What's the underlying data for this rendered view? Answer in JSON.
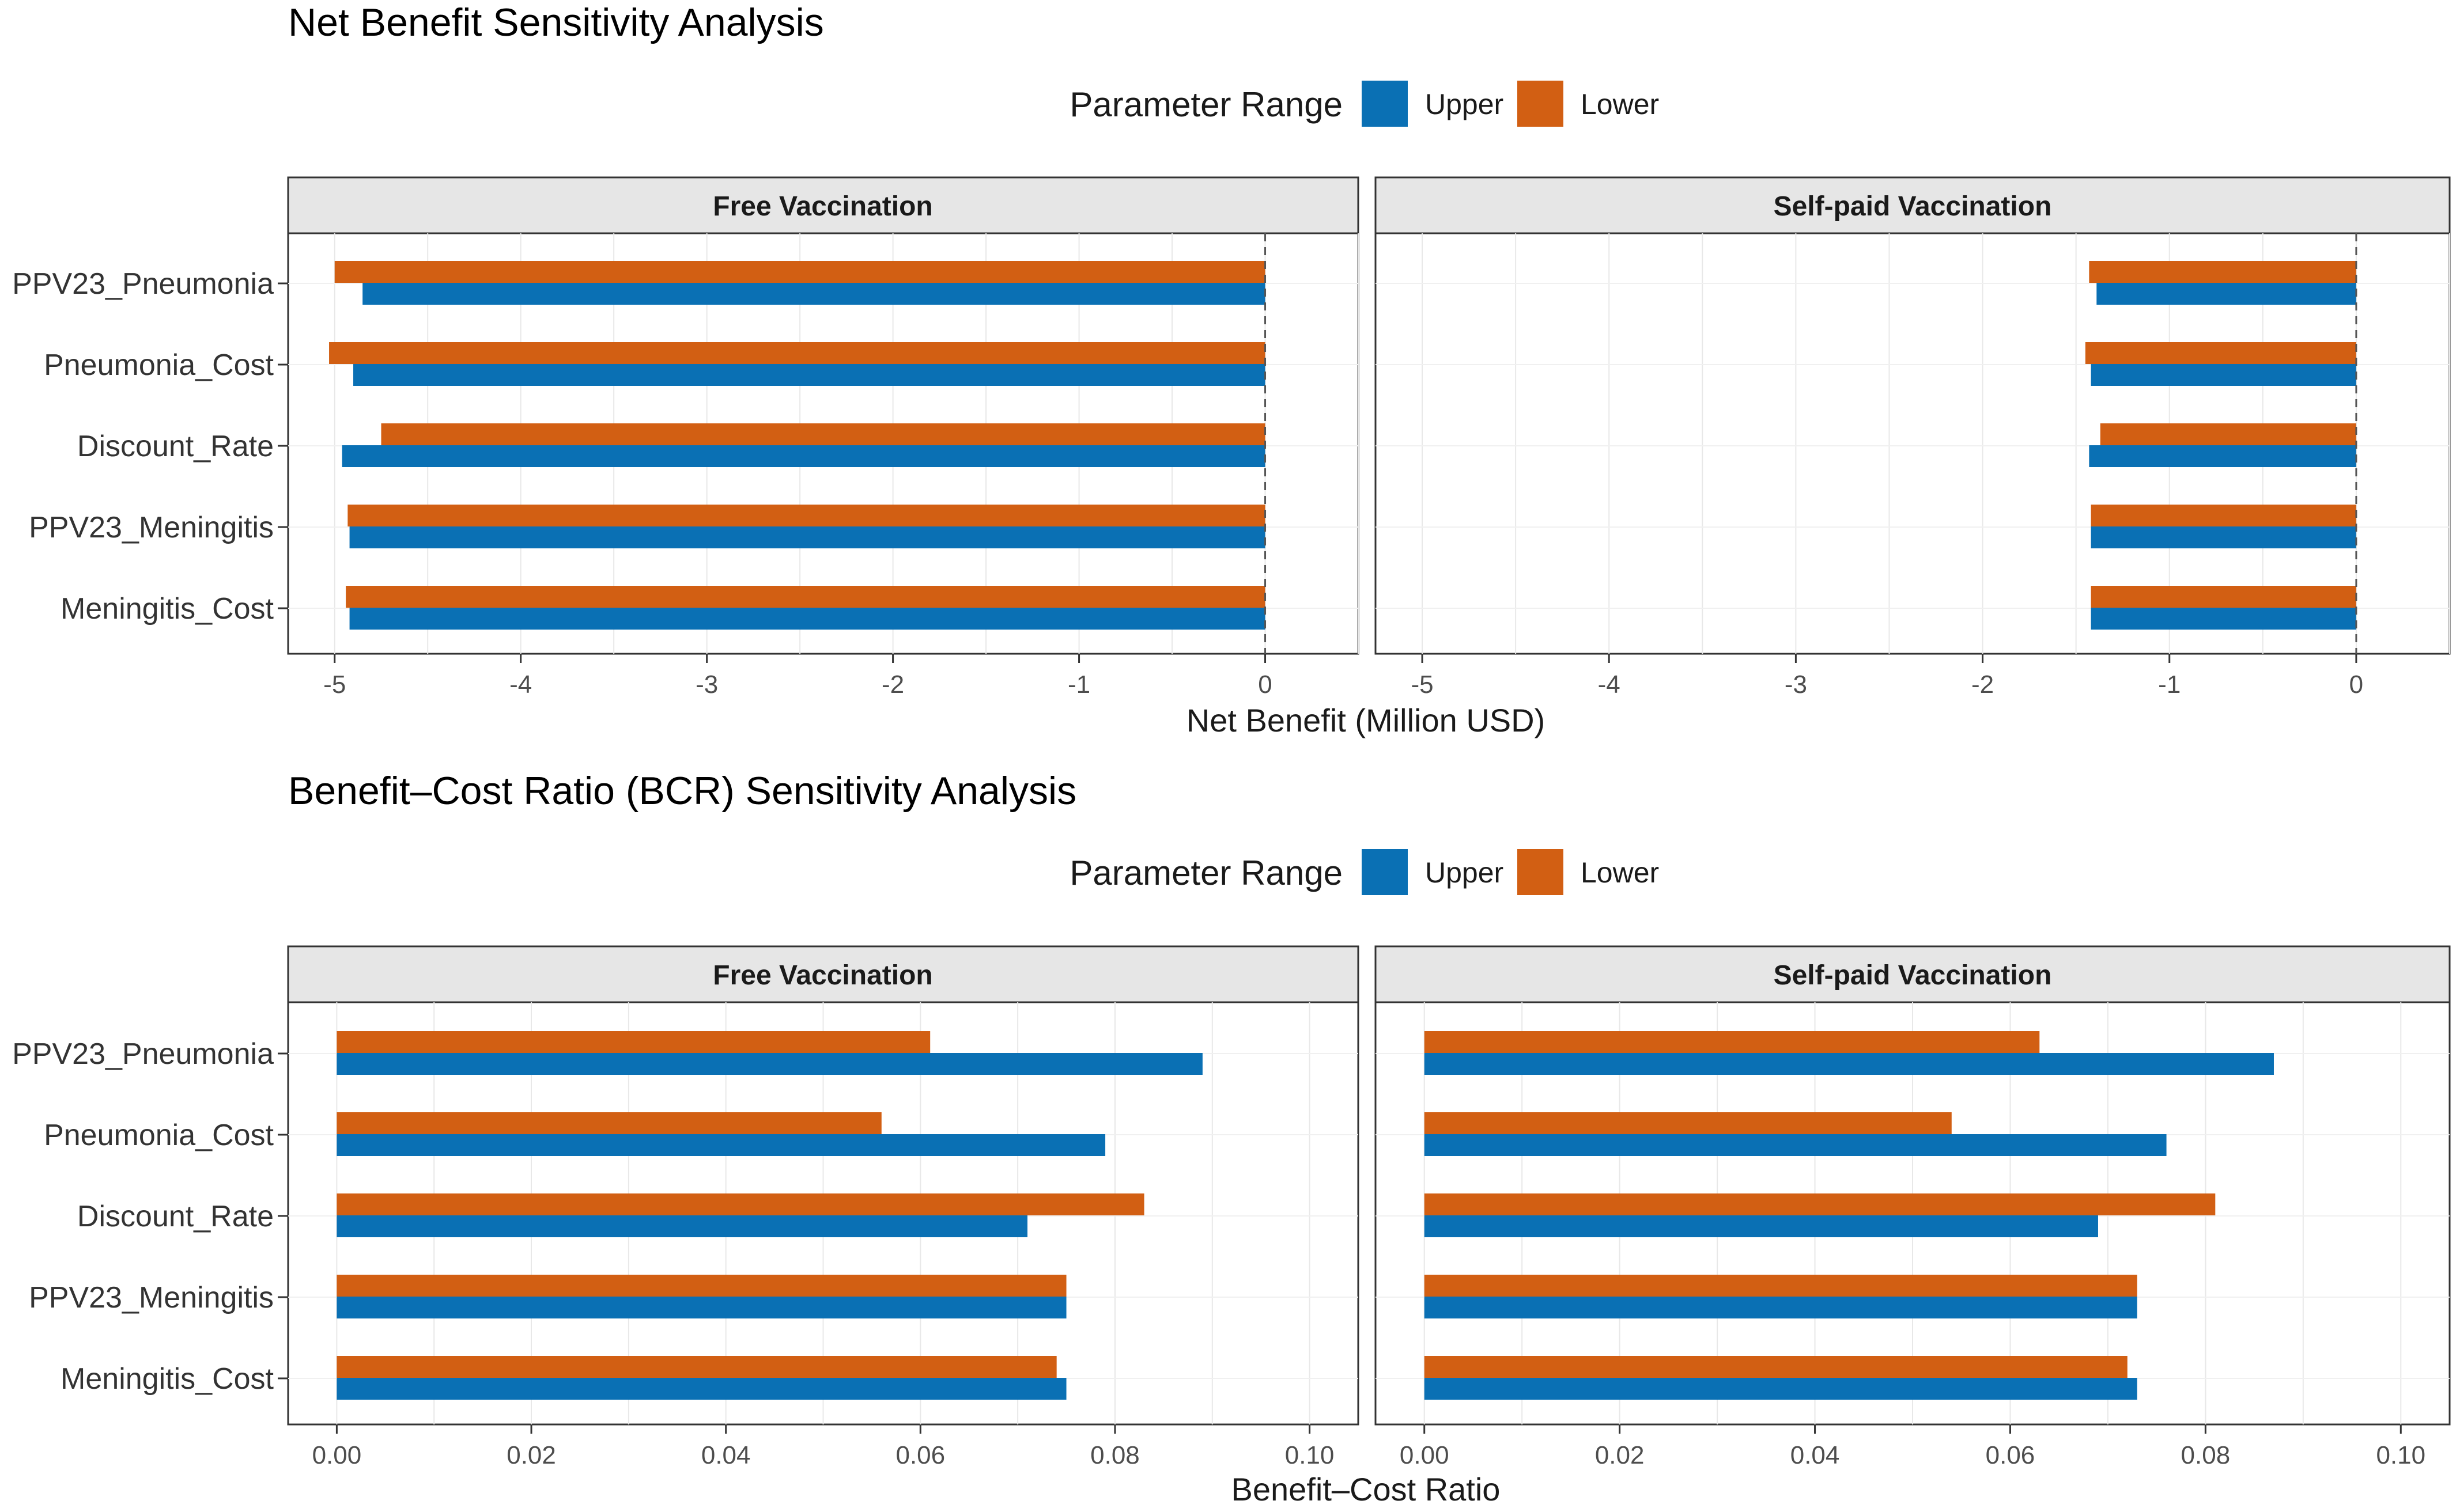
{
  "legend": {
    "title": "Parameter Range",
    "items": [
      {
        "key": "upper",
        "label": "Upper",
        "color": "#0A70B4"
      },
      {
        "key": "lower",
        "label": "Lower",
        "color": "#D25F13"
      }
    ]
  },
  "chart_data": [
    {
      "type": "bar",
      "orientation": "horizontal",
      "title": "Net Benefit Sensitivity Analysis",
      "xlabel": "Net Benefit (Million USD)",
      "xlim": [
        -5.25,
        0.5
      ],
      "xticks": [
        -5,
        -4,
        -3,
        -2,
        -1,
        0
      ],
      "xtick_labels": [
        "-5",
        "-4",
        "-3",
        "-2",
        "-1",
        "0"
      ],
      "reference_line": 0,
      "categories": [
        "PPV23_Pneumonia",
        "Pneumonia_Cost",
        "Discount_Rate",
        "PPV23_Meningitis",
        "Meningitis_Cost"
      ],
      "panels": [
        {
          "title": "Free Vaccination",
          "series": [
            {
              "name": "Lower",
              "values": [
                -5.0,
                -5.03,
                -4.75,
                -4.93,
                -4.94
              ]
            },
            {
              "name": "Upper",
              "values": [
                -4.85,
                -4.9,
                -4.96,
                -4.92,
                -4.92
              ]
            }
          ]
        },
        {
          "title": "Self-paid Vaccination",
          "series": [
            {
              "name": "Lower",
              "values": [
                -1.43,
                -1.45,
                -1.37,
                -1.42,
                -1.42
              ]
            },
            {
              "name": "Upper",
              "values": [
                -1.39,
                -1.42,
                -1.43,
                -1.42,
                -1.42
              ]
            }
          ]
        }
      ],
      "grid": true
    },
    {
      "type": "bar",
      "orientation": "horizontal",
      "title": "Benefit–Cost Ratio (BCR) Sensitivity Analysis",
      "xlabel": "Benefit–Cost Ratio",
      "xlim": [
        -0.005,
        0.105
      ],
      "xticks": [
        0,
        0.02,
        0.04,
        0.06,
        0.08,
        0.1
      ],
      "xtick_labels": [
        "0.00",
        "0.02",
        "0.04",
        "0.06",
        "0.08",
        "0.10"
      ],
      "categories": [
        "PPV23_Pneumonia",
        "Pneumonia_Cost",
        "Discount_Rate",
        "PPV23_Meningitis",
        "Meningitis_Cost"
      ],
      "panels": [
        {
          "title": "Free Vaccination",
          "series": [
            {
              "name": "Lower",
              "values": [
                0.061,
                0.056,
                0.083,
                0.075,
                0.074
              ]
            },
            {
              "name": "Upper",
              "values": [
                0.089,
                0.079,
                0.071,
                0.075,
                0.075
              ]
            }
          ]
        },
        {
          "title": "Self-paid Vaccination",
          "series": [
            {
              "name": "Lower",
              "values": [
                0.063,
                0.054,
                0.081,
                0.073,
                0.072
              ]
            },
            {
              "name": "Upper",
              "values": [
                0.087,
                0.076,
                0.069,
                0.073,
                0.073
              ]
            }
          ]
        }
      ],
      "grid": true
    }
  ]
}
